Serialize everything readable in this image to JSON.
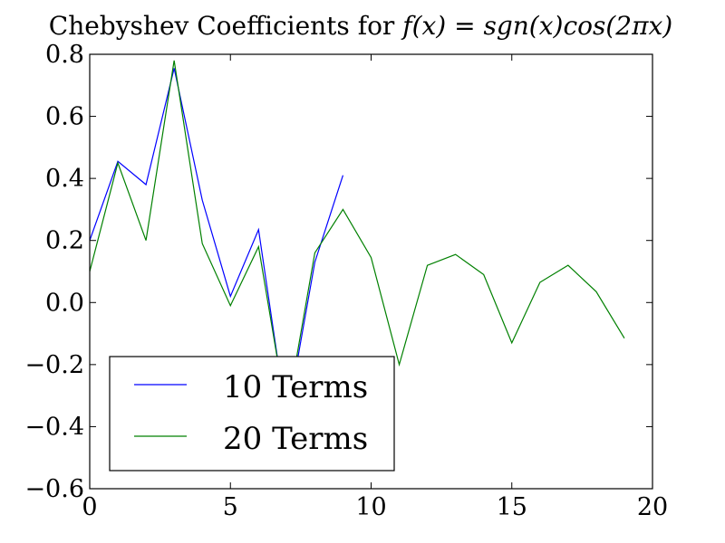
{
  "chart_data": {
    "type": "line",
    "title": "Chebyshev Coefficients for ",
    "title_math": "f(x) = sgn(x)cos(2πx)",
    "xlabel": "",
    "ylabel": "",
    "xlim": [
      0,
      20
    ],
    "ylim": [
      -0.6,
      0.8
    ],
    "x_ticks": [
      0,
      5,
      10,
      15,
      20
    ],
    "x_tick_labels": [
      "0",
      "5",
      "10",
      "15",
      "20"
    ],
    "y_ticks": [
      -0.6,
      -0.4,
      -0.2,
      0.0,
      0.2,
      0.4,
      0.6,
      0.8
    ],
    "y_tick_labels": [
      "−0.6",
      "−0.4",
      "−0.2",
      "0.0",
      "0.2",
      "0.4",
      "0.6",
      "0.8"
    ],
    "grid": false,
    "legend_position": "lower-left",
    "series": [
      {
        "name": "10 Terms",
        "color": "#0000ff",
        "x": [
          0,
          1,
          2,
          3,
          4,
          5,
          6,
          7,
          8,
          9
        ],
        "y": [
          0.2,
          0.455,
          0.38,
          0.755,
          0.33,
          0.02,
          0.235,
          -0.38,
          0.13,
          0.41
        ]
      },
      {
        "name": "20 Terms",
        "color": "#008000",
        "x": [
          0,
          1,
          2,
          3,
          4,
          5,
          6,
          7,
          8,
          9,
          10,
          11,
          12,
          13,
          14,
          15,
          16,
          17,
          18,
          19
        ],
        "y": [
          0.1,
          0.45,
          0.2,
          0.78,
          0.19,
          -0.01,
          0.18,
          -0.36,
          0.16,
          0.3,
          0.145,
          -0.2,
          0.12,
          0.155,
          0.09,
          -0.13,
          0.065,
          0.12,
          0.035,
          -0.115
        ]
      }
    ]
  }
}
